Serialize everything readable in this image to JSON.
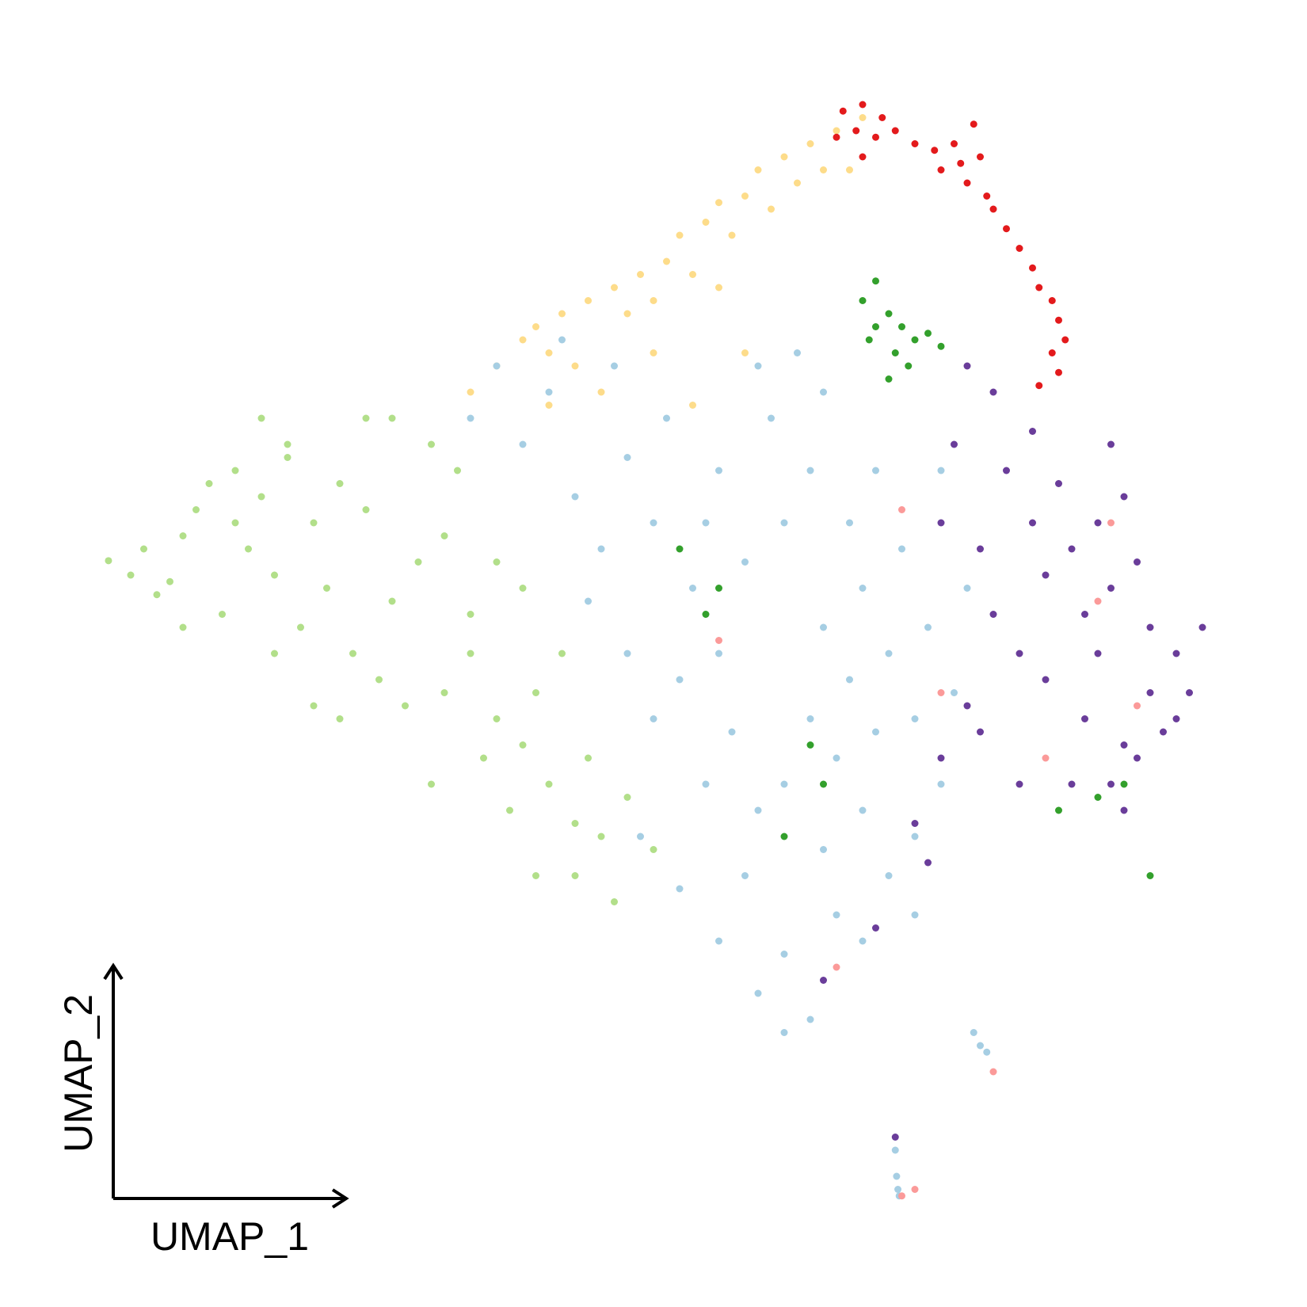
{
  "chart_data": {
    "type": "scatter",
    "xlabel": "UMAP_1",
    "ylabel": "UMAP_2",
    "xlim": [
      0,
      100
    ],
    "ylim": [
      0,
      100
    ],
    "series": [
      {
        "color": "#b2df8a",
        "x": [
          8.3,
          10,
          11,
          12,
          13,
          14,
          15,
          16,
          18,
          20,
          22,
          19,
          21,
          24,
          26,
          28,
          25,
          23,
          27,
          30,
          32,
          34,
          33,
          30,
          35,
          36,
          34,
          38,
          40,
          42,
          44,
          46,
          39,
          37,
          41,
          29,
          31,
          45,
          48,
          50,
          33,
          36,
          26,
          21,
          17,
          43,
          38,
          40,
          14,
          47,
          44,
          28,
          22,
          20,
          18,
          24,
          41
        ],
        "y": [
          57.1,
          56,
          58,
          54.5,
          55.5,
          59,
          61,
          63,
          64,
          62,
          65,
          58,
          56,
          60,
          63,
          61,
          55,
          52,
          50,
          54,
          57,
          59,
          66,
          68,
          64,
          53,
          47,
          45,
          43,
          40,
          37,
          36,
          38,
          42,
          47,
          48,
          46,
          42,
          39,
          35,
          40,
          50,
          45,
          50,
          53,
          50,
          57,
          55,
          52,
          31,
          33,
          68,
          66,
          68,
          60,
          46,
          33
        ]
      },
      {
        "color": "#fddc8a",
        "x": [
          36,
          38,
          40,
          41,
          42,
          43,
          44,
          45,
          47,
          49,
          51,
          52,
          54,
          55,
          57,
          58,
          60,
          62,
          64,
          66,
          63,
          59,
          56,
          53,
          50,
          48,
          55,
          57,
          53,
          50,
          46,
          42,
          61,
          65
        ],
        "y": [
          70,
          72,
          74,
          75,
          73,
          76,
          72,
          77,
          78,
          79,
          80,
          82,
          83,
          84.5,
          85,
          87,
          88,
          89,
          90,
          91,
          87,
          84,
          82,
          79,
          77,
          76,
          78,
          73,
          69,
          73,
          70,
          69,
          86,
          87
        ]
      },
      {
        "color": "#a6cee3",
        "x": [
          60,
          62,
          65,
          63,
          66,
          68,
          70,
          64,
          58,
          56,
          55,
          52,
          50,
          48,
          53,
          57,
          60,
          62,
          59,
          55,
          50,
          46,
          44,
          40,
          42,
          38,
          36,
          48,
          65,
          67,
          63,
          61,
          66,
          70,
          72,
          68,
          64,
          60,
          58,
          62,
          60,
          55,
          52,
          49,
          71,
          73,
          74,
          69,
          45,
          54,
          57,
          66,
          63,
          67,
          54,
          51,
          47,
          43,
          70,
          72,
          58,
          74.5,
          75,
          75.5,
          68.5,
          68.6,
          68.7,
          68.8
        ],
        "y": [
          40,
          45,
          48,
          52,
          55,
          50,
          45,
          42,
          38,
          44,
          50,
          48,
          45,
          50,
          55,
          57,
          60,
          64,
          68,
          64,
          60,
          58,
          62,
          66,
          70,
          72,
          68,
          65,
          60,
          64,
          70,
          73,
          38,
          36,
          40,
          33,
          30,
          27,
          24,
          22,
          21,
          28,
          32,
          36,
          52,
          47,
          55,
          58,
          54,
          40,
          33,
          28,
          35,
          44,
          60,
          68,
          72,
          74,
          30,
          64,
          72,
          21,
          20,
          19.5,
          12,
          10,
          9,
          8.5
        ]
      },
      {
        "color": "#e31a1c",
        "x": [
          64.5,
          66,
          67.5,
          65.5,
          67,
          68.5,
          70,
          71.5,
          73,
          74.5,
          75,
          73.5,
          72,
          74,
          75.5,
          76,
          77,
          78,
          79,
          79.5,
          80.5,
          81,
          81.5,
          80.5,
          81,
          79.5,
          66,
          64
        ],
        "y": [
          91.5,
          92,
          91,
          90,
          89.5,
          90,
          89,
          88.5,
          89,
          90.5,
          88,
          87.5,
          87,
          86,
          85,
          84,
          82.5,
          81,
          79.5,
          78,
          77,
          75.5,
          74,
          73,
          71.5,
          70.5,
          88,
          89.5
        ]
      },
      {
        "color": "#33a02c",
        "x": [
          66,
          67,
          68,
          69,
          70,
          71,
          72,
          67,
          68.5,
          69.5,
          66.5,
          68,
          54,
          55,
          52,
          62,
          63,
          60,
          84,
          86,
          88,
          81
        ],
        "y": [
          77,
          78.5,
          76,
          75,
          74,
          74.5,
          73.5,
          75,
          73,
          72,
          74,
          71,
          53,
          55,
          58,
          43,
          40,
          36,
          39,
          40,
          33,
          38
        ]
      },
      {
        "color": "#6a3d9a",
        "x": [
          82,
          84,
          80,
          85,
          87,
          83,
          79,
          81,
          86,
          88,
          90,
          91,
          89,
          87,
          85,
          86,
          83,
          80,
          78,
          76,
          75,
          77,
          79,
          76,
          74,
          73,
          72,
          74,
          72,
          70,
          71,
          67,
          63,
          88,
          92,
          84,
          82,
          86,
          90,
          85,
          75,
          78,
          68.5
        ],
        "y": [
          58,
          60,
          56,
          55,
          57,
          53,
          60,
          63,
          62,
          52,
          50,
          47,
          44,
          42,
          40,
          38,
          45,
          48,
          50,
          53,
          58,
          64,
          67,
          70,
          72,
          66,
          60,
          46,
          42,
          37,
          34,
          29,
          25,
          47,
          52,
          50,
          40,
          43,
          45,
          66,
          44,
          40,
          13
        ]
      },
      {
        "color": "#fb9a99",
        "x": [
          85,
          84,
          87,
          80,
          72,
          69,
          64,
          55,
          76,
          69,
          70
        ],
        "y": [
          60,
          54,
          46,
          42,
          47,
          61,
          26,
          51,
          18,
          8.5,
          9
        ]
      }
    ]
  }
}
